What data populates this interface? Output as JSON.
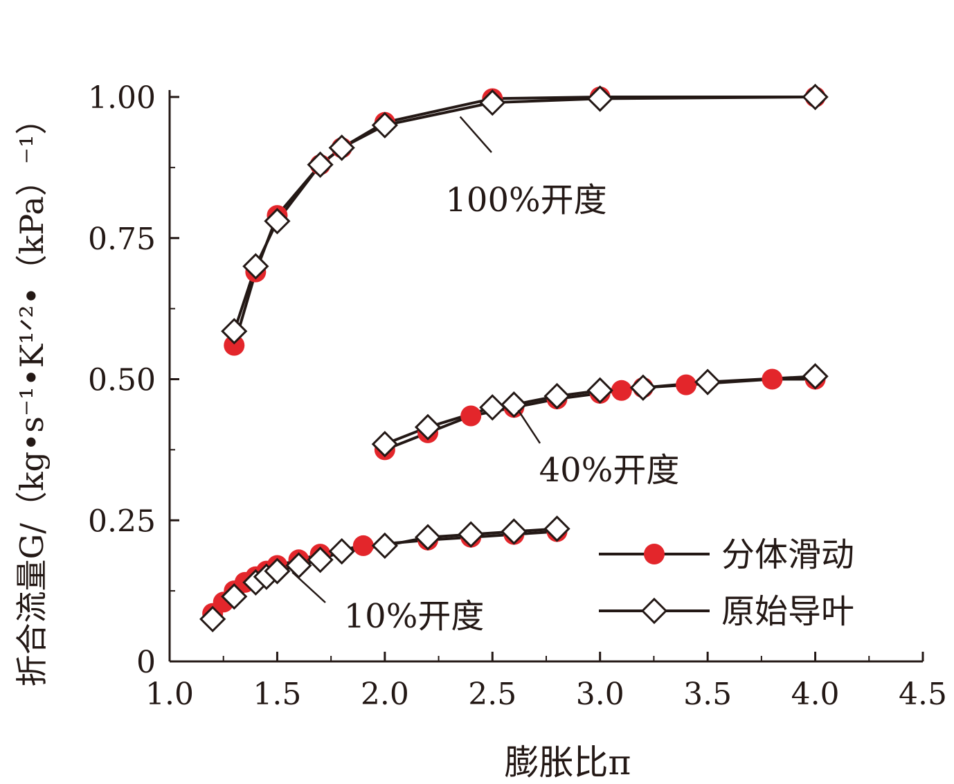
{
  "chart_data": {
    "type": "line",
    "xlabel": "膨胀比π",
    "ylabel": "折合流量G/（kg•s⁻¹•K¹ᐟ²•（kPa）⁻¹）",
    "xlim": [
      1.0,
      4.5
    ],
    "ylim": [
      0,
      1.0
    ],
    "xticks": [
      "1.0",
      "1.5",
      "2.0",
      "2.5",
      "3.0",
      "3.5",
      "4.0",
      "4.5"
    ],
    "yticks": [
      "0",
      "0.25",
      "0.50",
      "0.75",
      "1.00"
    ],
    "grid": false,
    "legend_position": "bottom-right",
    "legend": [
      {
        "label": "分体滑动",
        "marker": "filled-circle",
        "color": "#e3262b"
      },
      {
        "label": "原始导叶",
        "marker": "open-diamond",
        "color": "#ffffff"
      }
    ],
    "annotations": [
      {
        "text": "100%开度",
        "at": [
          2.35,
          0.965
        ]
      },
      {
        "text": "40%开度",
        "at": [
          2.62,
          0.445
        ]
      },
      {
        "text": "10%开度",
        "at": [
          1.57,
          0.158
        ]
      }
    ],
    "groups": [
      {
        "label": "100%开度",
        "series": [
          {
            "name": "分体滑动",
            "x": [
              1.3,
              1.4,
              1.5,
              1.7,
              1.8,
              2.0,
              2.5,
              3.0,
              4.0
            ],
            "y": [
              0.56,
              0.69,
              0.79,
              0.88,
              0.91,
              0.955,
              0.997,
              1.0,
              1.0
            ]
          },
          {
            "name": "原始导叶",
            "x": [
              1.3,
              1.4,
              1.5,
              1.7,
              1.8,
              2.0,
              2.5,
              3.0,
              4.0
            ],
            "y": [
              0.585,
              0.7,
              0.78,
              0.88,
              0.91,
              0.95,
              0.99,
              0.997,
              1.0
            ]
          }
        ]
      },
      {
        "label": "40%开度",
        "series": [
          {
            "name": "分体滑动",
            "x": [
              2.0,
              2.2,
              2.4,
              2.6,
              2.8,
              3.0,
              3.1,
              3.2,
              3.4,
              3.8,
              4.0
            ],
            "y": [
              0.375,
              0.405,
              0.435,
              0.45,
              0.465,
              0.475,
              0.48,
              0.485,
              0.49,
              0.5,
              0.5
            ]
          },
          {
            "name": "原始导叶",
            "x": [
              2.0,
              2.2,
              2.5,
              2.6,
              2.8,
              3.0,
              3.2,
              3.5,
              4.0
            ],
            "y": [
              0.385,
              0.415,
              0.45,
              0.455,
              0.47,
              0.48,
              0.485,
              0.495,
              0.505
            ]
          }
        ]
      },
      {
        "label": "10%开度",
        "series": [
          {
            "name": "分体滑动",
            "x": [
              1.2,
              1.25,
              1.3,
              1.35,
              1.4,
              1.45,
              1.5,
              1.6,
              1.7,
              1.9,
              2.2,
              2.4,
              2.6,
              2.8
            ],
            "y": [
              0.085,
              0.105,
              0.125,
              0.14,
              0.15,
              0.16,
              0.17,
              0.18,
              0.19,
              0.205,
              0.215,
              0.22,
              0.225,
              0.23
            ]
          },
          {
            "name": "原始导叶",
            "x": [
              1.2,
              1.3,
              1.4,
              1.45,
              1.5,
              1.6,
              1.7,
              1.8,
              2.0,
              2.2,
              2.4,
              2.6,
              2.8
            ],
            "y": [
              0.075,
              0.115,
              0.14,
              0.15,
              0.16,
              0.17,
              0.18,
              0.195,
              0.205,
              0.22,
              0.225,
              0.23,
              0.235
            ]
          }
        ]
      }
    ]
  }
}
